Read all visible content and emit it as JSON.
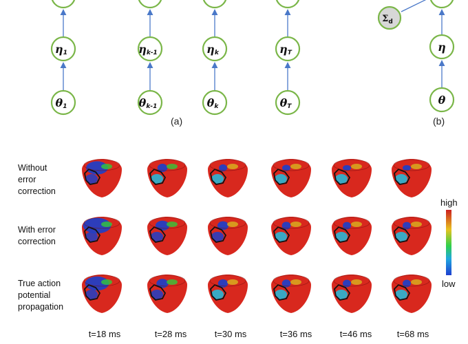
{
  "panels": {
    "a_label": "(a)",
    "b_label": "(b)"
  },
  "graph_a": {
    "columns": [
      {
        "sym": "θ",
        "sub": "1",
        "mid_sym": "η",
        "mid_sub": "1"
      },
      {
        "sym": "θ",
        "sub": "k-1",
        "mid_sym": "η",
        "mid_sub": "k-1"
      },
      {
        "sym": "θ",
        "sub": "k",
        "mid_sym": "η",
        "mid_sub": "k"
      },
      {
        "sym": "θ",
        "sub": "T",
        "mid_sym": "η",
        "mid_sub": "T"
      }
    ]
  },
  "graph_b": {
    "top_sym": "θ",
    "mid_sym": "η",
    "sigma_sym": "Σ",
    "sigma_sub": "d"
  },
  "rows": [
    {
      "label": "Without\nerror\ncorrection"
    },
    {
      "label": "With error\ncorrection"
    },
    {
      "label": "True action\npotential\npropagation"
    }
  ],
  "time_labels": [
    "t=18 ms",
    "t=28 ms",
    "t=30 ms",
    "t=36 ms",
    "t=46 ms",
    "t=68 ms"
  ],
  "colorbar": {
    "high": "high",
    "low": "low",
    "stops": [
      "#cc1f1f",
      "#e8c21f",
      "#2fd04a",
      "#1fa7e0",
      "#1e3fd0"
    ]
  },
  "heart_colors": {
    "base": "#d8281e",
    "active": "#1e3fc8",
    "mid": "#1fc0e0",
    "green": "#35c83a",
    "yellow": "#d8b41e",
    "outline": "#111111"
  },
  "heart_states": [
    [
      0.55,
      0.25,
      0.18,
      0.12,
      0.08,
      0.05
    ],
    [
      0.7,
      0.35,
      0.28,
      0.22,
      0.2,
      0.2
    ],
    [
      0.6,
      0.3,
      0.25,
      0.22,
      0.2,
      0.2
    ]
  ]
}
